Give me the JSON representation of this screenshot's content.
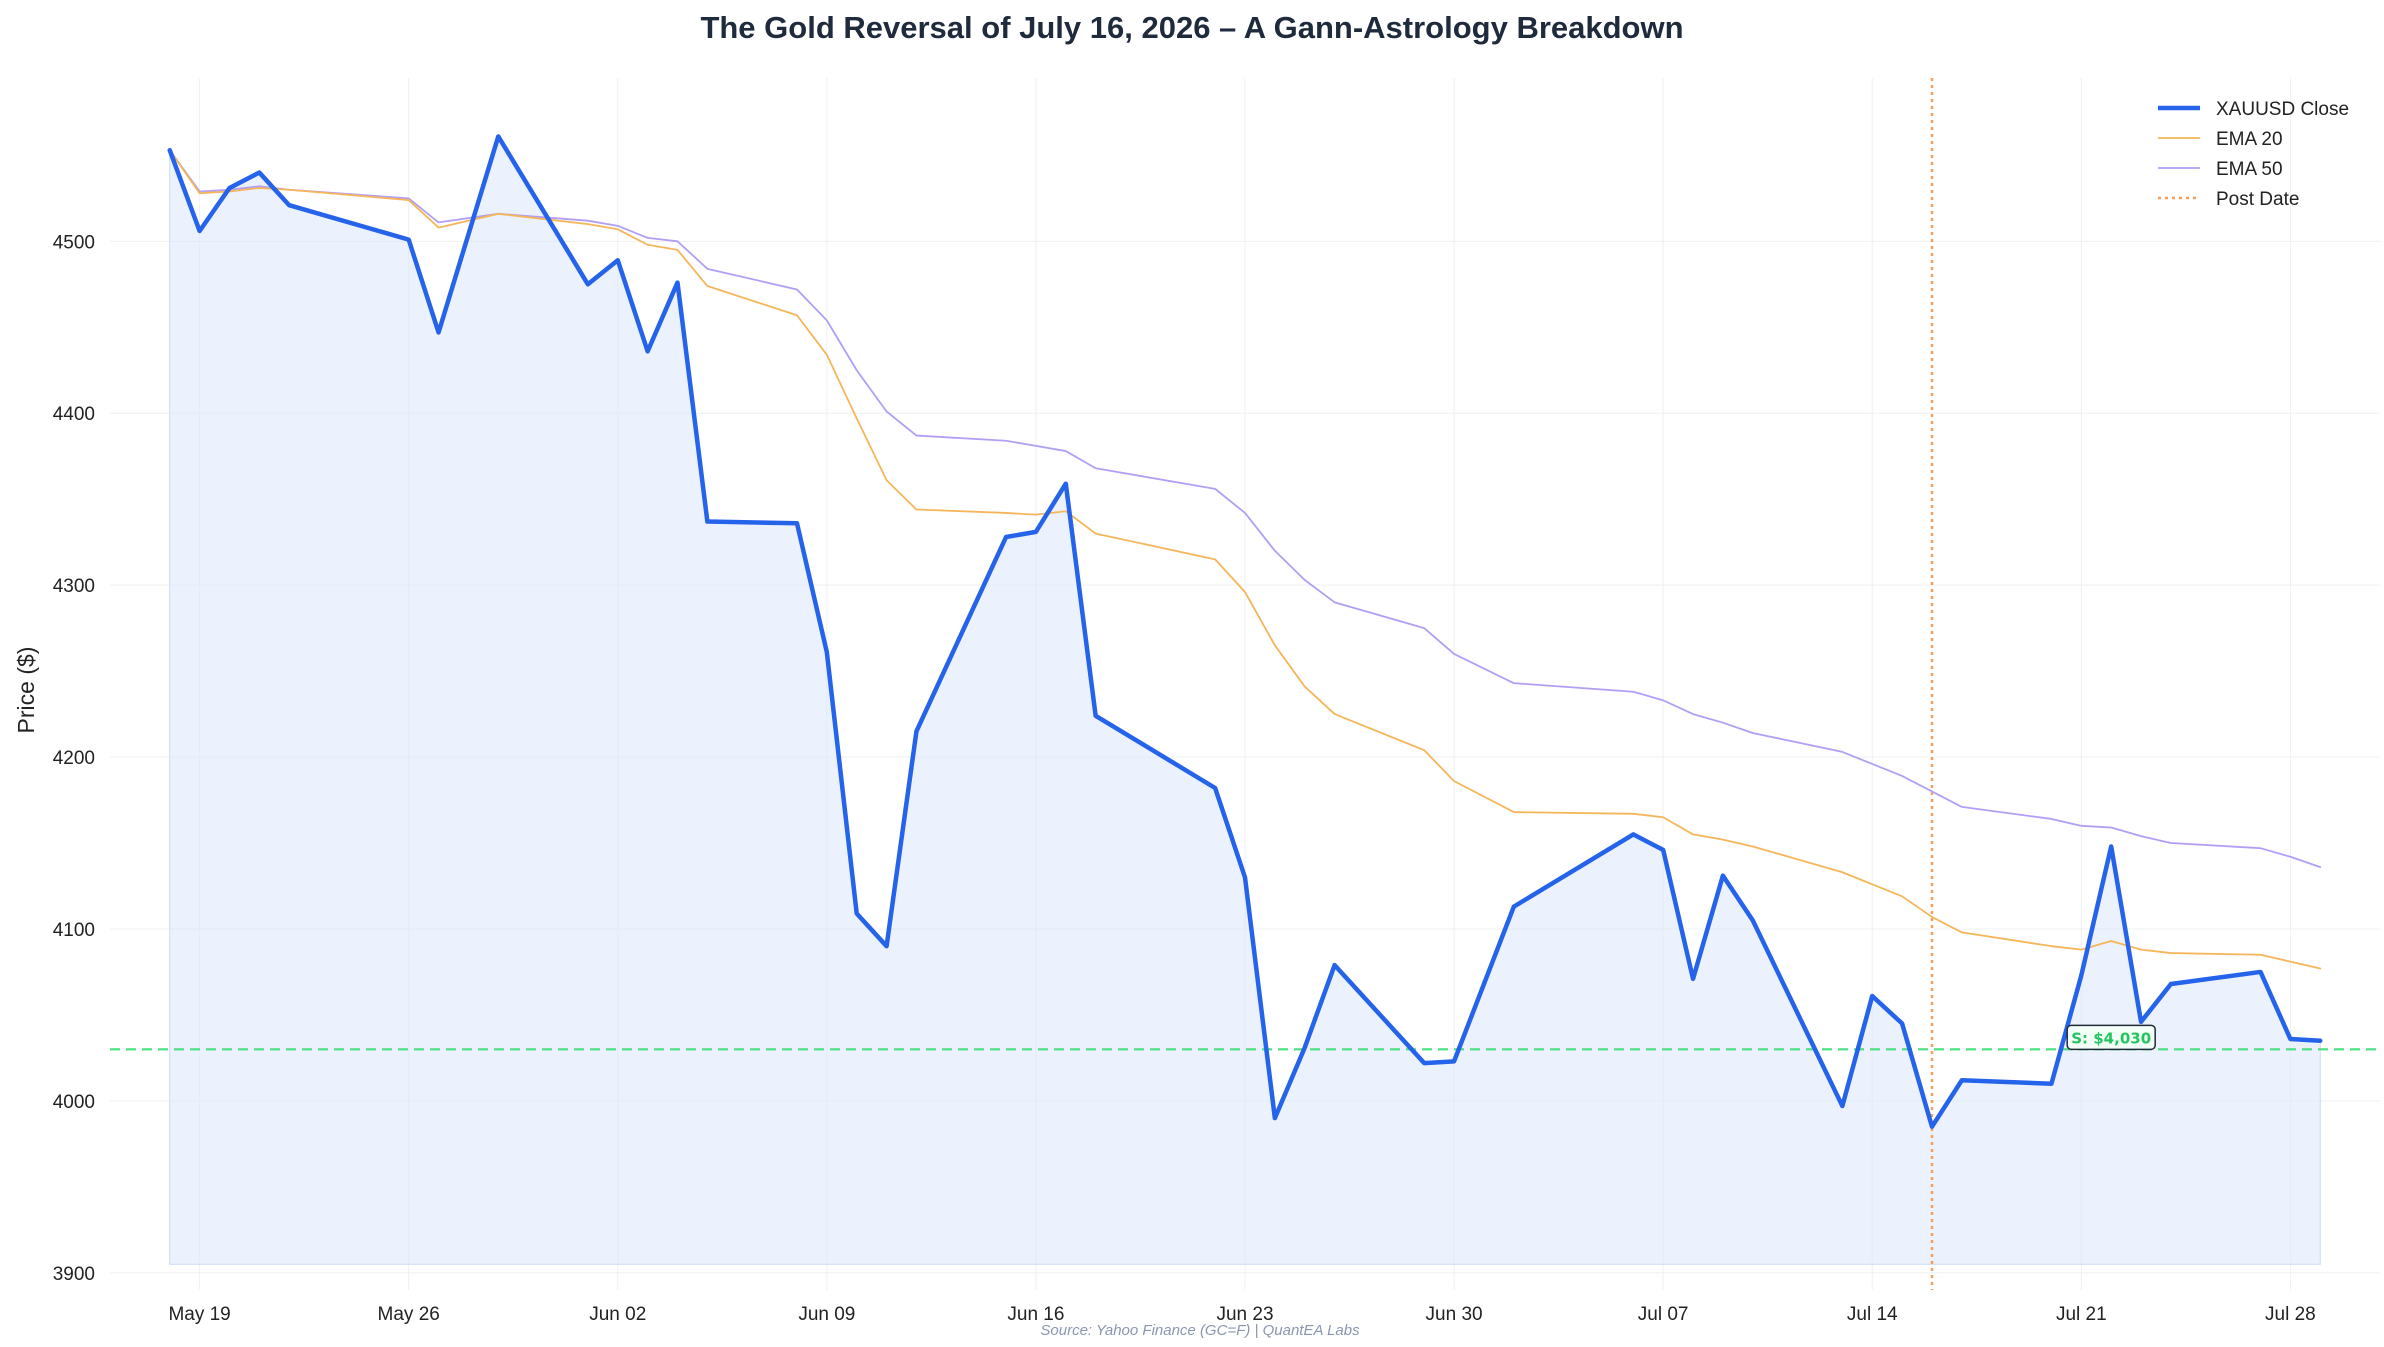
{
  "chart_data": {
    "type": "line",
    "title": "The Gold Reversal of July 16, 2026 – A Gann-Astrology Breakdown",
    "xlabel": "",
    "ylabel": "Price ($)",
    "ylim": [
      3890,
      4595
    ],
    "yticks": [
      3900,
      4000,
      4100,
      4200,
      4300,
      4400,
      4500
    ],
    "xlim": [
      "2026-05-16",
      "2026-07-31"
    ],
    "xticks": [
      {
        "date": "2026-05-19",
        "label": "May 19"
      },
      {
        "date": "2026-05-26",
        "label": "May 26"
      },
      {
        "date": "2026-06-02",
        "label": "Jun 02"
      },
      {
        "date": "2026-06-09",
        "label": "Jun 09"
      },
      {
        "date": "2026-06-16",
        "label": "Jun 16"
      },
      {
        "date": "2026-06-23",
        "label": "Jun 23"
      },
      {
        "date": "2026-06-30",
        "label": "Jun 30"
      },
      {
        "date": "2026-07-07",
        "label": "Jul 07"
      },
      {
        "date": "2026-07-14",
        "label": "Jul 14"
      },
      {
        "date": "2026-07-21",
        "label": "Jul 21"
      },
      {
        "date": "2026-07-28",
        "label": "Jul 28"
      }
    ],
    "grid": true,
    "legend_position": "top-right",
    "x": [
      "2026-05-18",
      "2026-05-19",
      "2026-05-20",
      "2026-05-21",
      "2026-05-22",
      "2026-05-26",
      "2026-05-27",
      "2026-05-29",
      "2026-06-01",
      "2026-06-02",
      "2026-06-03",
      "2026-06-04",
      "2026-06-05",
      "2026-06-08",
      "2026-06-09",
      "2026-06-10",
      "2026-06-11",
      "2026-06-12",
      "2026-06-15",
      "2026-06-16",
      "2026-06-17",
      "2026-06-18",
      "2026-06-22",
      "2026-06-23",
      "2026-06-24",
      "2026-06-25",
      "2026-06-26",
      "2026-06-29",
      "2026-06-30",
      "2026-07-02",
      "2026-07-06",
      "2026-07-07",
      "2026-07-08",
      "2026-07-09",
      "2026-07-10",
      "2026-07-13",
      "2026-07-14",
      "2026-07-15",
      "2026-07-16",
      "2026-07-17",
      "2026-07-20",
      "2026-07-21",
      "2026-07-22",
      "2026-07-23",
      "2026-07-24",
      "2026-07-27",
      "2026-07-28",
      "2026-07-29"
    ],
    "series": [
      {
        "name": "XAUUSD Close",
        "color": "#2563eb",
        "values": [
          4553,
          4506,
          4531,
          4540,
          4521,
          4501,
          4447,
          4561,
          4475,
          4489,
          4436,
          4476,
          4337,
          4336,
          4261,
          4109,
          4090,
          4215,
          4328,
          4331,
          4359,
          4224,
          4182,
          4130,
          3990,
          4031,
          4079,
          4022,
          4023,
          4113,
          4155,
          4146,
          4071,
          4131,
          4105,
          3997,
          4061,
          4045,
          3985,
          4012,
          4010,
          4073,
          4148,
          4046,
          4068,
          4075,
          4036,
          4035
        ]
      },
      {
        "name": "EMA 20",
        "color": "#f5b65a",
        "values": [
          4553,
          4528,
          4529,
          4531,
          4530,
          4524,
          4508,
          4516,
          4510,
          4507,
          4498,
          4495,
          4474,
          4457,
          4434,
          4397,
          4361,
          4344,
          4342,
          4341,
          4343,
          4330,
          4315,
          4296,
          4265,
          4241,
          4225,
          4204,
          4186,
          4168,
          4167,
          4165,
          4155,
          4152,
          4148,
          4133,
          4126,
          4119,
          4107,
          4098,
          4090,
          4088,
          4093,
          4088,
          4086,
          4085,
          4081,
          4077
        ]
      },
      {
        "name": "EMA 50",
        "color": "#b39ef5",
        "values": [
          4553,
          4529,
          4530,
          4532,
          4530,
          4525,
          4511,
          4516,
          4512,
          4509,
          4502,
          4500,
          4484,
          4472,
          4454,
          4425,
          4401,
          4387,
          4384,
          4381,
          4378,
          4368,
          4356,
          4342,
          4320,
          4303,
          4290,
          4275,
          4260,
          4243,
          4238,
          4233,
          4225,
          4220,
          4214,
          4203,
          4196,
          4189,
          4180,
          4171,
          4164,
          4160,
          4159,
          4154,
          4150,
          4147,
          4142,
          4136
        ]
      }
    ],
    "annotations": [
      {
        "type": "vline",
        "name": "Post Date",
        "x": "2026-07-16",
        "color": "#f5a05a",
        "style": "dotted"
      },
      {
        "type": "hline",
        "name": "support",
        "y": 4030,
        "color": "#4ade80",
        "style": "dashed",
        "label": "S: $4,030",
        "label_x": "2026-07-22"
      }
    ],
    "source": "Source: Yahoo Finance (GC=F) | QuantEA Labs"
  }
}
